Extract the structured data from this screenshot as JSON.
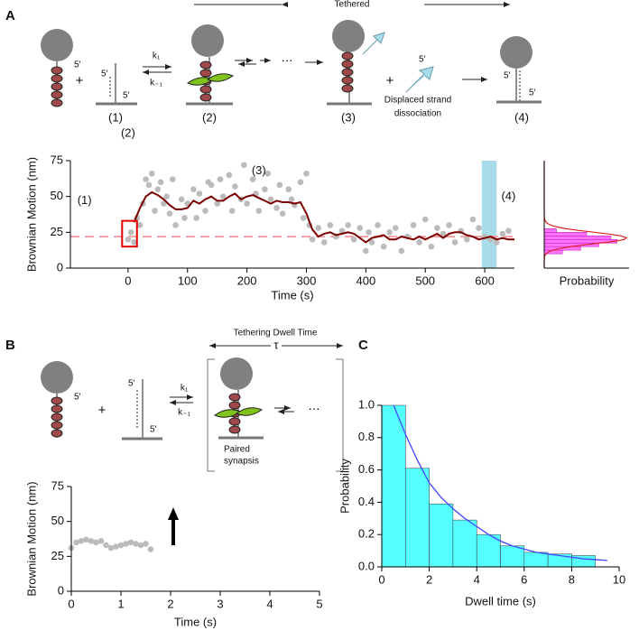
{
  "panels": {
    "a": "A",
    "b": "B",
    "c": "C"
  },
  "diagrams": {
    "five_prime": "5′",
    "plus": "+",
    "k1": "k₁",
    "k_minus1": "k₋₁",
    "ellipsis": "⋯",
    "a": {
      "tethered": "Tethered",
      "states": [
        "(1)",
        "(2)",
        "(3)",
        "(4)"
      ],
      "displaced": [
        "Displaced strand",
        "dissociation"
      ]
    },
    "b": {
      "dwell": "Tethering Dwell Time",
      "tau": "τ",
      "synapsis": [
        "Paired",
        "synapsis"
      ]
    }
  },
  "chart_data": [
    {
      "type": "scatter",
      "xlabel": "Time (s)",
      "ylabel": "Brownian Motion (nm)",
      "xlim": [
        -97,
        650
      ],
      "ylim": [
        0,
        75
      ],
      "xticks": [
        0,
        100,
        200,
        300,
        400,
        500,
        600
      ],
      "yticks": [
        0,
        25,
        50,
        75
      ],
      "annotations": [
        "(1)",
        "(2)",
        "(3)",
        "(4)"
      ],
      "reference_line": {
        "value": 22,
        "color": "#f4a0a0"
      },
      "highlight_band": {
        "x": [
          595,
          620
        ],
        "color": "#a8dce8"
      },
      "highlight_box": {
        "x": [
          -10,
          15
        ],
        "y": [
          15,
          33
        ],
        "color": "#e00000"
      },
      "series": [
        {
          "color": "#bbbbbb",
          "x": [
            0,
            5,
            10,
            15,
            20,
            25,
            30,
            35,
            40,
            45,
            50,
            55,
            60,
            65,
            70,
            75,
            80,
            90,
            95,
            100,
            110,
            115,
            120,
            130,
            135,
            140,
            150,
            155,
            160,
            170,
            175,
            180,
            190,
            195,
            200,
            210,
            215,
            220,
            230,
            235,
            240,
            250,
            255,
            260,
            270,
            275,
            280,
            290,
            295,
            300,
            305,
            310,
            320,
            330,
            340,
            350,
            360,
            370,
            380,
            390,
            400,
            405,
            410,
            420,
            430,
            440,
            450,
            460,
            470,
            480,
            490,
            500,
            510,
            520,
            530,
            540,
            550,
            560,
            570,
            580,
            590,
            600,
            610,
            620,
            630,
            640
          ],
          "values": [
            20,
            25,
            18,
            35,
            30,
            45,
            62,
            58,
            66,
            40,
            55,
            60,
            45,
            50,
            38,
            62,
            30,
            48,
            35,
            45,
            55,
            35,
            52,
            40,
            60,
            58,
            45,
            62,
            50,
            65,
            40,
            57,
            48,
            72,
            45,
            62,
            52,
            40,
            55,
            66,
            48,
            42,
            58,
            38,
            55,
            48,
            44,
            60,
            35,
            66,
            30,
            20,
            28,
            18,
            30,
            22,
            26,
            30,
            20,
            28,
            12,
            25,
            18,
            30,
            15,
            25,
            28,
            12,
            22,
            30,
            18,
            34,
            15,
            28,
            24,
            30,
            18,
            26,
            20,
            34,
            28,
            22,
            20,
            18,
            24,
            26
          ]
        },
        {
          "type": "line",
          "color": "#7b0000",
          "x": [
            10,
            20,
            30,
            40,
            50,
            60,
            70,
            80,
            90,
            100,
            110,
            120,
            130,
            140,
            150,
            160,
            170,
            180,
            190,
            200,
            210,
            220,
            230,
            240,
            250,
            260,
            270,
            280,
            290,
            300,
            310,
            320,
            330,
            340,
            350,
            360,
            370,
            380,
            390,
            400,
            410,
            420,
            430,
            440,
            450,
            460,
            470,
            480,
            490,
            500,
            510,
            520,
            530,
            540,
            550,
            560,
            570,
            580,
            590,
            600,
            610,
            620,
            630,
            640,
            650
          ],
          "values": [
            32,
            42,
            50,
            53,
            51,
            48,
            44,
            41,
            41,
            42,
            47,
            45,
            48,
            50,
            47,
            47,
            50,
            52,
            48,
            50,
            51,
            49,
            47,
            45,
            47,
            46,
            46,
            45,
            46,
            38,
            27,
            22,
            24,
            25,
            23,
            24,
            25,
            24,
            21,
            18,
            21,
            22,
            23,
            20,
            20,
            22,
            21,
            20,
            22,
            20,
            22,
            24,
            21,
            24,
            25,
            25,
            23,
            22,
            20,
            21,
            22,
            20,
            21,
            20,
            20
          ]
        }
      ]
    },
    {
      "type": "histogram",
      "orientation": "horizontal",
      "xlabel": "Probability",
      "color": "#ff44ff",
      "xlim": [
        0,
        0.7
      ],
      "ylim": [
        0,
        75
      ],
      "bins": [
        10,
        12.5,
        15,
        17.5,
        20,
        22.5,
        25,
        27.5
      ],
      "values": [
        0.15,
        0.3,
        0.45,
        0.6,
        0.55,
        0.35,
        0.1
      ],
      "fit": {
        "type": "gaussian",
        "mean": 21,
        "sd": 4,
        "peak": 0.68,
        "color": "#e02020"
      }
    },
    {
      "type": "scatter",
      "xlabel": "Time (s)",
      "ylabel": "Brownian Motion (nm)",
      "xlim": [
        0,
        5
      ],
      "ylim": [
        0,
        75
      ],
      "xticks": [
        0,
        1,
        2,
        3,
        4,
        5
      ],
      "yticks": [
        0,
        25,
        50,
        75
      ],
      "series": [
        {
          "color": "#bbbbbb",
          "x": [
            0,
            0.1,
            0.2,
            0.3,
            0.4,
            0.5,
            0.6,
            0.7,
            0.8,
            0.9,
            1.0,
            1.1,
            1.2,
            1.3,
            1.4,
            1.5,
            1.6
          ],
          "values": [
            31,
            35,
            36,
            37,
            36,
            35,
            36,
            33,
            31,
            32,
            33,
            34,
            35,
            34,
            33,
            34,
            30
          ]
        }
      ]
    },
    {
      "type": "histogram",
      "orientation": "vertical",
      "xlabel": "Dwell time (s)",
      "ylabel": "Probability",
      "color": "#55ffff",
      "xlim": [
        0,
        10
      ],
      "ylim": [
        0,
        1.0
      ],
      "xticks": [
        0,
        2,
        4,
        6,
        8,
        10
      ],
      "yticks": [
        {
          "value": 0,
          "label": "0.0"
        },
        0.2,
        0.4,
        0.6,
        0.8,
        {
          "value": 1,
          "label": "1.0"
        }
      ],
      "bins": [
        0,
        1,
        2,
        3,
        4,
        5,
        6,
        7,
        8,
        9
      ],
      "values": [
        1.0,
        0.61,
        0.39,
        0.29,
        0.2,
        0.13,
        0.09,
        0.08,
        0.07
      ],
      "fit": {
        "type": "curve",
        "color": "#4444ff",
        "x": [
          0.5,
          1,
          1.5,
          2,
          2.5,
          3,
          3.5,
          4,
          4.5,
          5,
          5.5,
          6,
          6.5,
          7,
          7.5,
          8,
          8.5,
          9,
          9.5
        ],
        "values": [
          1.0,
          0.82,
          0.66,
          0.52,
          0.43,
          0.36,
          0.3,
          0.25,
          0.2,
          0.16,
          0.13,
          0.11,
          0.09,
          0.08,
          0.07,
          0.06,
          0.05,
          0.045,
          0.04
        ]
      }
    }
  ]
}
